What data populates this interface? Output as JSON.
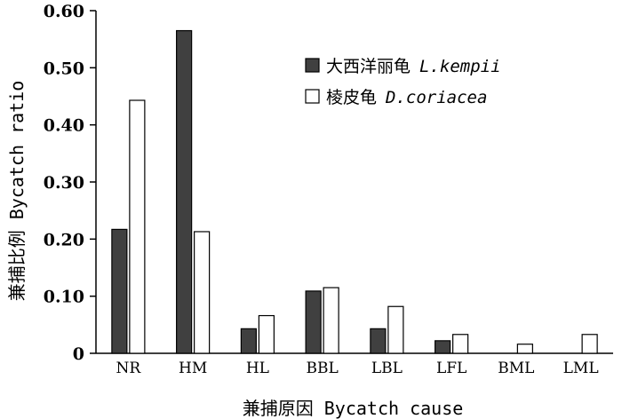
{
  "chart_data": {
    "type": "bar",
    "title": "",
    "xlabel": "兼捕原因 Bycatch cause",
    "ylabel": "兼捕比例 Bycatch ratio",
    "categories": [
      "NR",
      "HM",
      "HL",
      "BBL",
      "LBL",
      "LFL",
      "BML",
      "LML"
    ],
    "ylim": [
      0,
      0.6
    ],
    "yticks": [
      "0",
      "0.10",
      "0.20",
      "0.30",
      "0.40",
      "0.50",
      "0.60"
    ],
    "ytick_values": [
      0,
      0.1,
      0.2,
      0.3,
      0.4,
      0.5,
      0.6
    ],
    "grid": false,
    "legend_position": "top-right",
    "series": [
      {
        "name": "大西洋丽龟 L.kempii",
        "name_cn": "大西洋丽龟",
        "name_latin": "L.kempii",
        "color": "#404040",
        "values": [
          0.217,
          0.565,
          0.043,
          0.109,
          0.043,
          0.022,
          0,
          0
        ]
      },
      {
        "name": "棱皮龟 D.coriacea",
        "name_cn": "棱皮龟",
        "name_latin": "D.coriacea",
        "color": "#ffffff",
        "values": [
          0.443,
          0.213,
          0.066,
          0.115,
          0.082,
          0.033,
          0.016,
          0.033
        ]
      }
    ]
  }
}
